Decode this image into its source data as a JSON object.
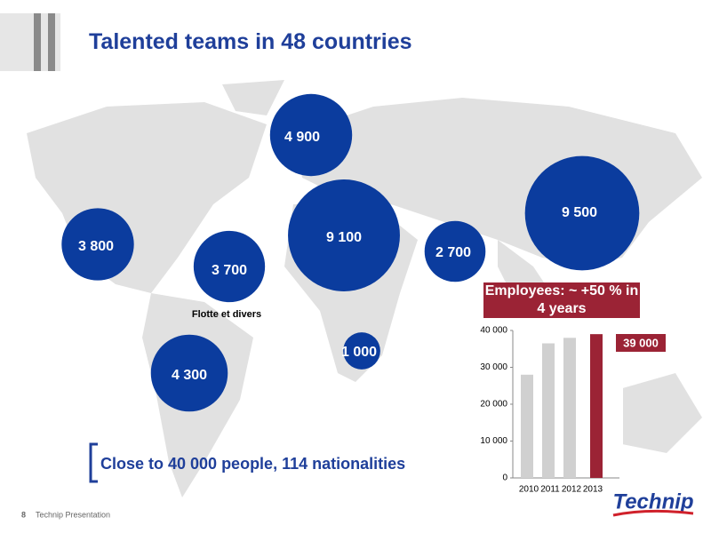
{
  "title": "Talented teams in 48 countries",
  "bubbles": [
    {
      "value": 4900,
      "label": "4 900"
    },
    {
      "value": 9100,
      "label": "9 100"
    },
    {
      "value": 9500,
      "label": "9 500"
    },
    {
      "value": 3800,
      "label": "3 800"
    },
    {
      "value": 3700,
      "label": "3 700"
    },
    {
      "value": 2700,
      "label": "2 700"
    },
    {
      "value": 1000,
      "label": "1 000"
    },
    {
      "value": 4300,
      "label": "4 300"
    }
  ],
  "bubble_color": "#0b3c9e",
  "fleet_label": "Flotte et divers",
  "tagline": "Close to 40 000 people, 114 nationalities",
  "footer": {
    "page": "8",
    "text": "Technip Presentation",
    "logo": "Technip"
  },
  "chart_data": {
    "type": "bar",
    "annotation": "Employees: ~ +50 % in 4 years",
    "categories": [
      "2010",
      "2011",
      "2012",
      "2013"
    ],
    "values": [
      28000,
      36500,
      38000,
      39000
    ],
    "value_labels": [
      null,
      null,
      null,
      "39 000"
    ],
    "colors": [
      "#d0d0d0",
      "#d0d0d0",
      "#d0d0d0",
      "#9b2335"
    ],
    "ylim": [
      0,
      40000
    ],
    "yticks": [
      0,
      {
        "value": 10000,
        "label": "10 000"
      },
      {
        "value": 20000,
        "label": "20 000"
      },
      {
        "value": 30000,
        "label": "30 000"
      },
      {
        "value": 40000,
        "label": "40 000"
      }
    ]
  }
}
